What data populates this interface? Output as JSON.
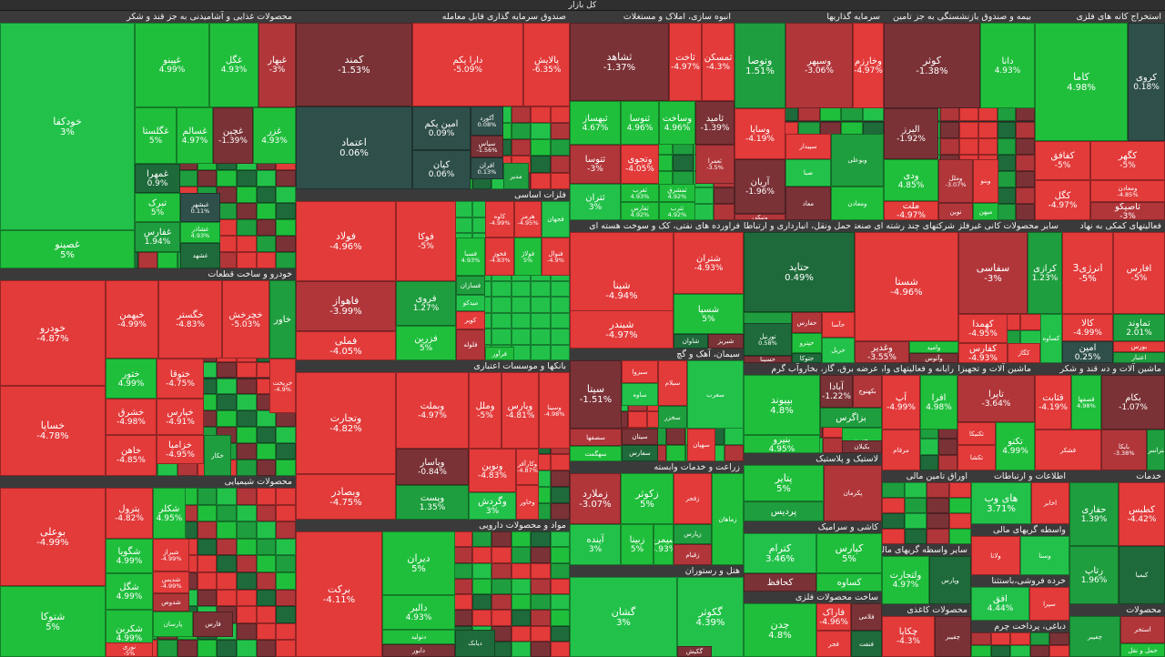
{
  "page_title": "کل بازار",
  "colors": {
    "green_strong": "#1fbf3c",
    "green": "#22c24a",
    "green_mid": "#1e9e3e",
    "green_dark": "#1e6a3a",
    "neutral": "#2f4f4a",
    "red_dark": "#7a3236",
    "red_mid": "#b0363a",
    "red": "#e33a3a"
  },
  "sectors": [
    {
      "name": "محصولات غذایی و آشامیدنی به جز قند و شکر",
      "cells": [
        {
          "sym": "خودکفا",
          "chg": "3%"
        },
        {
          "sym": "غصینو",
          "chg": "5%"
        },
        {
          "sym": "غپینو",
          "chg": "4.99%"
        },
        {
          "sym": "غگل",
          "chg": "4.93%"
        },
        {
          "sym": "غبهار",
          "chg": "-3%"
        },
        {
          "sym": "غگلستا",
          "chg": "5%"
        },
        {
          "sym": "غسالم",
          "chg": "4.97%"
        },
        {
          "sym": "غچین",
          "chg": "-1.39%"
        },
        {
          "sym": "غزر",
          "chg": "4.93%"
        },
        {
          "sym": "غمهرا",
          "chg": "0.9%"
        },
        {
          "sym": "تبرک",
          "chg": "5%"
        },
        {
          "sym": "غفارس",
          "chg": "1.94%"
        },
        {
          "sym": "غبشهر",
          "chg": "0.11%"
        },
        {
          "sym": "غشاذر",
          "chg": "4.93%"
        },
        {
          "sym": "غشهد",
          "chg": ""
        }
      ]
    },
    {
      "name": "صندوق سرمایه گذاری قابل معامله",
      "cells": [
        {
          "sym": "کمند",
          "chg": "-1.53%"
        },
        {
          "sym": "دارا یکم",
          "chg": "-5.09%"
        },
        {
          "sym": "پالایش",
          "chg": "-6.35%"
        },
        {
          "sym": "اعتماد",
          "chg": "0.06%"
        },
        {
          "sym": "امین یکم",
          "chg": "0.09%"
        },
        {
          "sym": "آکورد",
          "chg": "0.08%"
        },
        {
          "sym": "سپاس",
          "chg": "-1.56%"
        },
        {
          "sym": "کیان",
          "chg": "0.06%"
        },
        {
          "sym": "افران",
          "chg": "0.13%"
        },
        {
          "sym": "مدیر",
          "chg": ""
        }
      ]
    },
    {
      "name": "انبوه سازی، املاک و مستغلات",
      "cells": [
        {
          "sym": "ثشاهد",
          "chg": "-1.37%"
        },
        {
          "sym": "ثاخت",
          "chg": "-4.97%"
        },
        {
          "sym": "ثمسکن",
          "chg": "-4.3%"
        },
        {
          "sym": "ثبهساز",
          "chg": "4.67%"
        },
        {
          "sym": "ثنوسا",
          "chg": "4.96%"
        },
        {
          "sym": "وساخت",
          "chg": "4.96%"
        },
        {
          "sym": "ثامید",
          "chg": "-1.39%"
        },
        {
          "sym": "ثتوسا",
          "chg": "-3%"
        },
        {
          "sym": "وتجوی",
          "chg": "-4.05%"
        },
        {
          "sym": "ثعمرا",
          "chg": "-3.5%"
        },
        {
          "sym": "ثغرب",
          "chg": "4.93%"
        },
        {
          "sym": "ثفارس",
          "chg": "4.92%"
        },
        {
          "sym": "ثتران",
          "chg": "3%"
        },
        {
          "sym": "ثمشرق",
          "chg": "4.92%"
        },
        {
          "sym": "ثترب",
          "chg": "4.92%"
        }
      ]
    },
    {
      "name": "سرمایه گذاریها",
      "cells": [
        {
          "sym": "وتوصا",
          "chg": "1.51%"
        },
        {
          "sym": "وسپهر",
          "chg": "-3.06%"
        },
        {
          "sym": "وخارزم",
          "chg": "-4.97%"
        },
        {
          "sym": "وساپا",
          "chg": "-4.19%"
        },
        {
          "sym": "آریان",
          "chg": "-1.96%"
        },
        {
          "sym": "صبا",
          "chg": ""
        },
        {
          "sym": "سپیدار",
          "chg": ""
        },
        {
          "sym": "وبوعلی",
          "chg": ""
        },
        {
          "sym": "ونیکی",
          "chg": ""
        },
        {
          "sym": "ومعادن",
          "chg": ""
        },
        {
          "sym": "معاد",
          "chg": ""
        }
      ]
    },
    {
      "name": "بیمه و صندوق بازنشستگی به جز تامین",
      "cells": [
        {
          "sym": "کوثر",
          "chg": "-1.38%"
        },
        {
          "sym": "دانا",
          "chg": "4.93%"
        },
        {
          "sym": "البرز",
          "chg": "-1.92%"
        },
        {
          "sym": "ودی",
          "chg": "4.85%"
        },
        {
          "sym": "وملل",
          "chg": "-3.07%"
        },
        {
          "sym": "وبنو",
          "chg": ""
        },
        {
          "sym": "ملت",
          "chg": "-4.97%"
        },
        {
          "sym": "نوین",
          "chg": ""
        },
        {
          "sym": "میهن",
          "chg": ""
        }
      ]
    },
    {
      "name": "استخراج کانه های فلزی",
      "cells": [
        {
          "sym": "کاما",
          "chg": "4.98%"
        },
        {
          "sym": "کروی",
          "chg": "0.18%"
        },
        {
          "sym": "کگهر",
          "chg": "-5%"
        },
        {
          "sym": "کفافق",
          "chg": "-5%"
        },
        {
          "sym": "ومعادن",
          "chg": "-4.85%"
        },
        {
          "sym": "کگل",
          "chg": "-4.97%"
        },
        {
          "sym": "کچاد",
          "chg": ""
        },
        {
          "sym": "تاصیکو",
          "chg": "-3%"
        }
      ]
    },
    {
      "name": "خودرو و ساخت قطعات",
      "cells": [
        {
          "sym": "خودرو",
          "chg": "-4.87%"
        },
        {
          "sym": "خبهمن",
          "chg": "-4.99%"
        },
        {
          "sym": "خگستر",
          "chg": "-4.83%"
        },
        {
          "sym": "خچرخش",
          "chg": "-5.03%"
        },
        {
          "sym": "خاور",
          "chg": ""
        },
        {
          "sym": "خساپا",
          "chg": "-4.78%"
        },
        {
          "sym": "ختور",
          "chg": "4.99%"
        },
        {
          "sym": "ختوقا",
          "chg": "-4.75%"
        },
        {
          "sym": "خشرق",
          "chg": "-4.98%"
        },
        {
          "sym": "خپارس",
          "chg": "-4.91%"
        },
        {
          "sym": "خاهن",
          "chg": "-4.85%"
        },
        {
          "sym": "خزامیا",
          "chg": "-4.95%"
        },
        {
          "sym": "خکار",
          "chg": ""
        },
        {
          "sym": "خریخت",
          "chg": "-4.9%"
        }
      ]
    },
    {
      "name": "فلزات اساسی",
      "cells": [
        {
          "sym": "فولاد",
          "chg": "-4.96%"
        },
        {
          "sym": "فوکا",
          "chg": "-5%"
        },
        {
          "sym": "فاهواز",
          "chg": "-3.99%"
        },
        {
          "sym": "فروی",
          "chg": "1.27%"
        },
        {
          "sym": "فملی",
          "chg": "-4.05%"
        },
        {
          "sym": "فزرین",
          "chg": "5%"
        },
        {
          "sym": "فسبا",
          "chg": "4.93%"
        },
        {
          "sym": "فخوز",
          "chg": "-4.83%"
        },
        {
          "sym": "فولاژ",
          "chg": "5%"
        },
        {
          "sym": "میدکو",
          "chg": ""
        },
        {
          "sym": "کویر",
          "chg": ""
        },
        {
          "sym": "فسازان",
          "chg": ""
        },
        {
          "sym": "فلوله",
          "chg": ""
        },
        {
          "sym": "فرآور",
          "chg": ""
        },
        {
          "sym": "هرمز",
          "chg": "-4.95%"
        },
        {
          "sym": "کاوه",
          "chg": "-4.99%"
        },
        {
          "sym": "فنوال",
          "chg": "-4.9%"
        },
        {
          "sym": "فجهان",
          "chg": ""
        }
      ]
    },
    {
      "name": "فراورده های نفتی، کک و سوخت هسته ای",
      "cells": [
        {
          "sym": "شپنا",
          "chg": "-4.94%"
        },
        {
          "sym": "شتران",
          "chg": "-4.93%"
        },
        {
          "sym": "شپدیس",
          "chg": ""
        },
        {
          "sym": "شبندر",
          "chg": "-4.97%"
        },
        {
          "sym": "شسپا",
          "chg": "5%"
        },
        {
          "sym": "شبریز",
          "chg": ""
        },
        {
          "sym": "شاوان",
          "chg": ""
        }
      ]
    },
    {
      "name": "حمل ونقل، انبارداری و ارتباطات",
      "cells": [
        {
          "sym": "حتاید",
          "chg": "0.49%"
        },
        {
          "sym": "حکشتی",
          "chg": ""
        },
        {
          "sym": "حفارس",
          "chg": ""
        },
        {
          "sym": "حپترو",
          "chg": ""
        },
        {
          "sym": "حسینا",
          "chg": ""
        },
        {
          "sym": "حتوکا",
          "chg": ""
        },
        {
          "sym": "حآسا",
          "chg": ""
        },
        {
          "sym": "حریل",
          "chg": ""
        },
        {
          "sym": "تورنیل",
          "chg": "0.58%"
        }
      ]
    },
    {
      "name": "شرکتهای چند رشته ای صنعتی",
      "cells": [
        {
          "sym": "شستا",
          "chg": "-4.96%"
        },
        {
          "sym": "وغدیر",
          "chg": "-3.55%"
        },
        {
          "sym": "وامید",
          "chg": ""
        },
        {
          "sym": "وآتوس",
          "chg": ""
        }
      ]
    },
    {
      "name": "سایر محصولات کانی غیرفلزی",
      "cells": [
        {
          "sym": "سفاسی",
          "chg": "-3%"
        },
        {
          "sym": "کرازی",
          "chg": "1.23%"
        },
        {
          "sym": "کهمدا",
          "chg": "-4.95%"
        },
        {
          "sym": "کفارس",
          "chg": "-4.93%"
        },
        {
          "sym": "کگاز",
          "chg": ""
        },
        {
          "sym": "کساوه",
          "chg": ""
        }
      ]
    },
    {
      "name": "فعالیتهای کمکی به نهاد",
      "cells": [
        {
          "sym": "انرژی3",
          "chg": "-5%"
        },
        {
          "sym": "افارس",
          "chg": "-5%"
        },
        {
          "sym": "تماوند",
          "chg": "2.01%"
        },
        {
          "sym": "کالا",
          "chg": "-4.99%"
        },
        {
          "sym": "امین",
          "chg": "0.25%"
        },
        {
          "sym": "بورس",
          "chg": ""
        },
        {
          "sym": "اعتبار",
          "chg": ""
        }
      ]
    },
    {
      "name": "بانکها و موسسات اعتباری",
      "cells": [
        {
          "sym": "وتجارت",
          "chg": "-4.82%"
        },
        {
          "sym": "وبملت",
          "chg": "-4.97%"
        },
        {
          "sym": "وملل",
          "chg": "-5%"
        },
        {
          "sym": "وپارس",
          "chg": "-4.81%"
        },
        {
          "sym": "وبصادر",
          "chg": "-4.75%"
        },
        {
          "sym": "وپاسار",
          "chg": "-0.84%"
        },
        {
          "sym": "ونوین",
          "chg": "-4.83%"
        },
        {
          "sym": "وپست",
          "chg": "1.35%"
        },
        {
          "sym": "وکارآفر",
          "chg": "-4.87%"
        },
        {
          "sym": "وگردش",
          "chg": "3%"
        },
        {
          "sym": "وخاور",
          "chg": ""
        },
        {
          "sym": "وسینا",
          "chg": "-4.98%"
        }
      ]
    },
    {
      "name": "سیمان، آهک و گچ",
      "cells": [
        {
          "sym": "سیتا",
          "chg": "-1.51%"
        },
        {
          "sym": "سبزوا",
          "chg": ""
        },
        {
          "sym": "ساوه",
          "chg": ""
        },
        {
          "sym": "سیلام",
          "chg": ""
        },
        {
          "sym": "سخزر",
          "chg": ""
        },
        {
          "sym": "سصفها",
          "chg": ""
        },
        {
          "sym": "سهگمت",
          "chg": ""
        },
        {
          "sym": "سیتان",
          "chg": ""
        },
        {
          "sym": "سفارس",
          "chg": ""
        },
        {
          "sym": "سهپان",
          "chg": ""
        },
        {
          "sym": "سغرب",
          "chg": ""
        }
      ]
    },
    {
      "name": "زراعت و خدمات وابسته",
      "cells": [
        {
          "sym": "زملارد",
          "chg": "-3.07%"
        },
        {
          "sym": "زکوثر",
          "chg": "5%"
        },
        {
          "sym": "زبینا",
          "chg": "5%"
        },
        {
          "sym": "زپارس",
          "chg": ""
        },
        {
          "sym": "زقیام",
          "chg": ""
        },
        {
          "sym": "زماهان",
          "chg": ""
        },
        {
          "sym": "آینده",
          "chg": "3%"
        },
        {
          "sym": "سیمرغ",
          "chg": "4.93%"
        },
        {
          "sym": "زفجر",
          "chg": ""
        }
      ]
    },
    {
      "name": "عرضه برق، گاز، بخاروآب گرم",
      "cells": [
        {
          "sym": "بپیوند",
          "chg": "4.8%"
        },
        {
          "sym": "آبادا",
          "chg": "-1.22%"
        },
        {
          "sym": "بزاگرس",
          "chg": ""
        },
        {
          "sym": "بکهنوج",
          "chg": ""
        },
        {
          "sym": "بجهرم",
          "chg": ""
        },
        {
          "sym": "بکیلان",
          "chg": ""
        },
        {
          "sym": "بنیرو",
          "chg": "4.95%"
        }
      ]
    },
    {
      "name": "لاستیک و پلاستیک",
      "cells": [
        {
          "sym": "پتایر",
          "chg": "5%"
        },
        {
          "sym": "پردیس",
          "chg": ""
        },
        {
          "sym": "پکرمان",
          "chg": ""
        }
      ]
    },
    {
      "name": "کاشی و سرامیک",
      "cells": [
        {
          "sym": "کترام",
          "chg": "3.46%"
        },
        {
          "sym": "کپارس",
          "chg": "5%"
        },
        {
          "sym": "کساوه",
          "chg": ""
        },
        {
          "sym": "کحافظ",
          "chg": ""
        }
      ]
    },
    {
      "name": "ساخت محصولات فلزی",
      "cells": [
        {
          "sym": "چدن",
          "chg": "4.8%"
        },
        {
          "sym": "فاراک",
          "chg": "-4.96%"
        },
        {
          "sym": "فلامی",
          "chg": ""
        },
        {
          "sym": "فنفت",
          "chg": ""
        },
        {
          "sym": "فجر",
          "chg": ""
        }
      ]
    },
    {
      "name": "محصولات کاغذی",
      "cells": [
        {
          "sym": "چکاپا",
          "chg": "-4.3%"
        },
        {
          "sym": "چفیبر",
          "chg": ""
        }
      ]
    },
    {
      "name": "رایانه و فعالیتهای وابسته",
      "cells": [
        {
          "sym": "آپ",
          "chg": "-4.99%"
        },
        {
          "sym": "افرا",
          "chg": "4.98%"
        },
        {
          "sym": "مرقام",
          "chg": ""
        }
      ]
    },
    {
      "name": "ماشین آلات و تجهیزات",
      "cells": [
        {
          "sym": "تاپرا",
          "chg": "-3.64%"
        },
        {
          "sym": "تکنیکا",
          "chg": ""
        },
        {
          "sym": "تکنو",
          "chg": "4.99%"
        },
        {
          "sym": "تکشا",
          "chg": ""
        },
        {
          "sym": "تسایا",
          "chg": ""
        }
      ]
    },
    {
      "name": "قند و شکر",
      "cells": [
        {
          "sym": "قثابت",
          "chg": "-4.19%"
        },
        {
          "sym": "قصفها",
          "chg": "4.98%"
        },
        {
          "sym": "قشکر",
          "chg": ""
        }
      ]
    },
    {
      "name": "ماشین آلات و دستگاههای برقی",
      "cells": [
        {
          "sym": "بکام",
          "chg": "-1.07%"
        },
        {
          "sym": "بایکا",
          "chg": "-3.38%"
        },
        {
          "sym": "بترانس",
          "chg": ""
        }
      ]
    },
    {
      "name": "مواد و محصولات دارویی",
      "cells": [
        {
          "sym": "برکت",
          "chg": "-4.11%"
        },
        {
          "sym": "دیران",
          "chg": "5%"
        },
        {
          "sym": "دالبر",
          "chg": "4.93%"
        },
        {
          "sym": "دتولید",
          "chg": ""
        },
        {
          "sym": "دابور",
          "chg": ""
        },
        {
          "sym": "دیابک",
          "chg": ""
        }
      ]
    },
    {
      "name": "محصولات شیمیایی",
      "cells": [
        {
          "sym": "بوعلی",
          "chg": "-4.99%"
        },
        {
          "sym": "پترول",
          "chg": "-4.82%"
        },
        {
          "sym": "شکلر",
          "chg": "4.95%"
        },
        {
          "sym": "شگویا",
          "chg": "4.99%"
        },
        {
          "sym": "شگل",
          "chg": "4.99%"
        },
        {
          "sym": "شکربن",
          "chg": "4.99%"
        },
        {
          "sym": "شتوکا",
          "chg": "5%"
        },
        {
          "sym": "شیراز",
          "chg": "-4.99%"
        },
        {
          "sym": "شدیس",
          "chg": "-4.99%"
        },
        {
          "sym": "شدوص",
          "chg": ""
        },
        {
          "sym": "پارسان",
          "chg": ""
        },
        {
          "sym": "فارس",
          "chg": ""
        },
        {
          "sym": "نوری",
          "chg": "-5%"
        }
      ]
    },
    {
      "name": "هتل و رستوران",
      "cells": [
        {
          "sym": "گشان",
          "chg": "3%"
        },
        {
          "sym": "گکوثر",
          "chg": "4.39%"
        },
        {
          "sym": "گکیش",
          "chg": ""
        }
      ]
    },
    {
      "name": "اوراق تامین مالی",
      "cells": []
    },
    {
      "name": "سایر واسطه گریهای مالی",
      "cells": [
        {
          "sym": "ولتجارت",
          "chg": "4.97%"
        },
        {
          "sym": "وپارس",
          "chg": ""
        }
      ]
    },
    {
      "name": "اطلاعات و ارتباطات",
      "cells": [
        {
          "sym": "های وب",
          "chg": "3.71%"
        },
        {
          "sym": "اخابر",
          "chg": ""
        }
      ]
    },
    {
      "name": "واسطه گریهای مالی",
      "cells": [
        {
          "sym": "ولانا",
          "chg": ""
        },
        {
          "sym": "وسنا",
          "chg": ""
        }
      ]
    },
    {
      "name": "خرده فروشی،باستثنا",
      "cells": [
        {
          "sym": "افق",
          "chg": "4.44%"
        },
        {
          "sym": "سپرا",
          "chg": ""
        }
      ]
    },
    {
      "name": "دباغی، پرداخت چرم",
      "cells": []
    },
    {
      "name": "محصولات",
      "cells": [
        {
          "sym": "چفیبر",
          "chg": ""
        },
        {
          "sym": "استخر",
          "chg": ""
        },
        {
          "sym": "حمل و نقل",
          "chg": ""
        }
      ]
    },
    {
      "name": "خدمات",
      "cells": [
        {
          "sym": "حفاری",
          "chg": "1.39%"
        },
        {
          "sym": "کطبس",
          "chg": "-4.42%"
        },
        {
          "sym": "رتاپ",
          "chg": "1.96%"
        },
        {
          "sym": "کیمیا",
          "chg": ""
        }
      ]
    }
  ]
}
